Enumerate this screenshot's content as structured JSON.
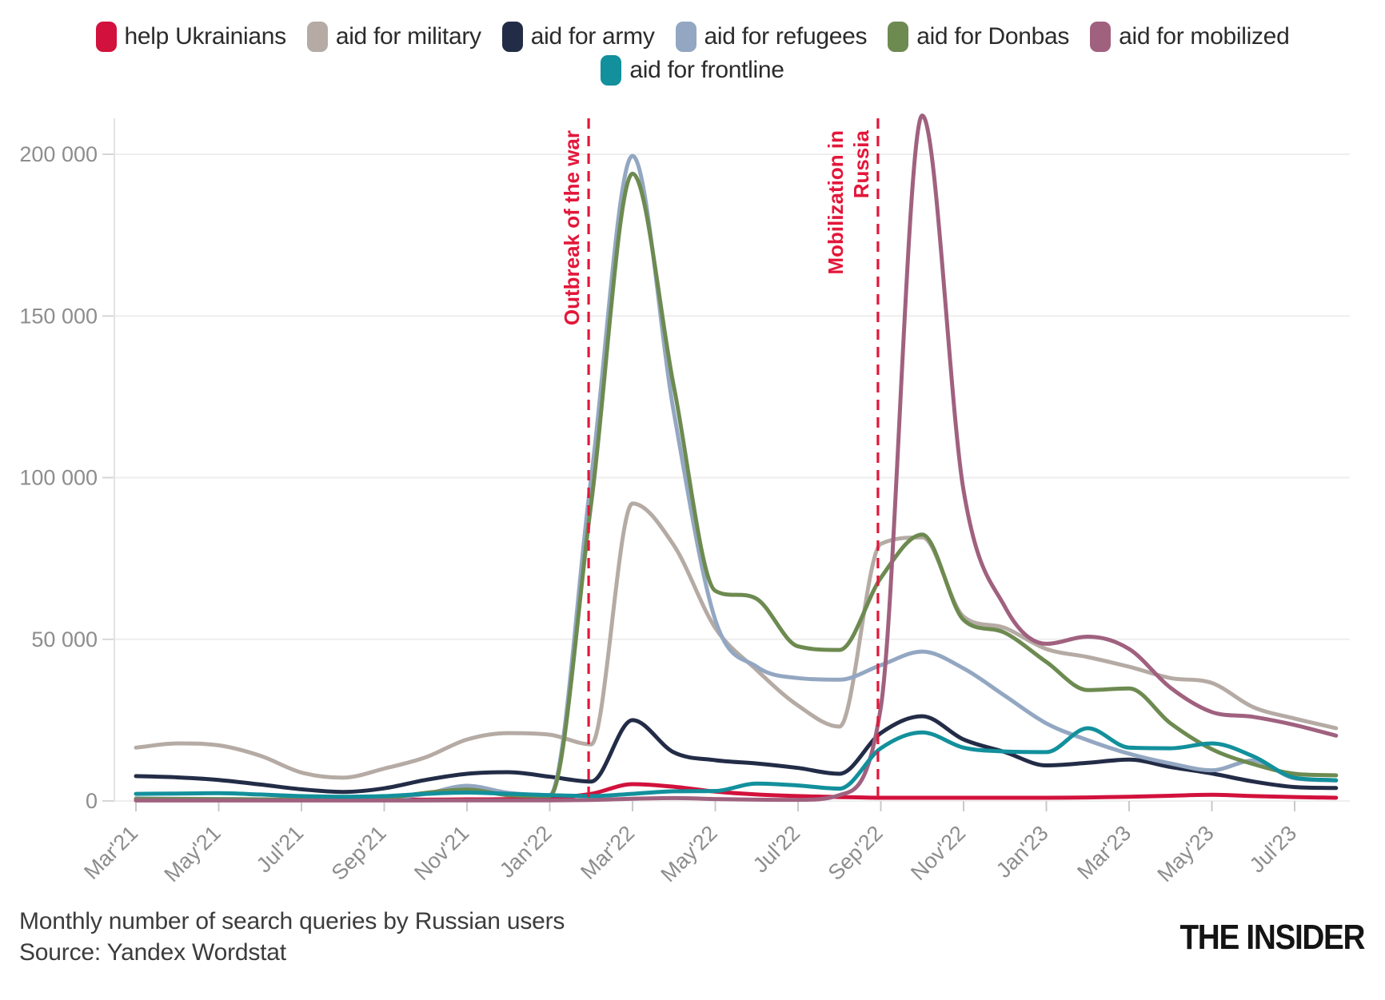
{
  "chart_data": {
    "type": "line",
    "title": "Monthly number of search queries by Russian users",
    "source": "Source: Yandex Wordstat",
    "categories": [
      "Mar'21",
      "Apr'21",
      "May'21",
      "Jun'21",
      "Jul'21",
      "Aug'21",
      "Sep'21",
      "Oct'21",
      "Nov'21",
      "Dec'21",
      "Jan'22",
      "Feb'22",
      "Mar'22",
      "Apr'22",
      "May'22",
      "Jun'22",
      "Jul'22",
      "Aug'22",
      "Sep'22",
      "Oct'22",
      "Nov'22",
      "Dec'22",
      "Jan'23",
      "Feb'23",
      "Mar'23",
      "Apr'23",
      "May'23",
      "Jun'23",
      "Jul'23",
      "Aug'23"
    ],
    "x_tick_every": 2,
    "ylim": [
      0,
      212000
    ],
    "grid": "horizontal",
    "y_ticks": {
      "values": [
        0,
        50000,
        100000,
        150000,
        200000
      ],
      "labels": [
        "0",
        "50 000",
        "100 000",
        "150 000",
        "200 000"
      ]
    },
    "series": [
      {
        "name": "help Ukrainians",
        "color": "#d2113c",
        "values": [
          300,
          300,
          400,
          350,
          300,
          300,
          350,
          400,
          500,
          550,
          900,
          2200,
          5200,
          4400,
          2900,
          2000,
          1500,
          1200,
          1000,
          1000,
          1000,
          1000,
          1000,
          1100,
          1300,
          1600,
          1900,
          1500,
          1200,
          1000
        ]
      },
      {
        "name": "aid for military",
        "color": "#b5aba4",
        "values": [
          16500,
          17800,
          17200,
          14000,
          8800,
          7200,
          10000,
          13500,
          19000,
          21000,
          20500,
          17500,
          92000,
          79000,
          53500,
          40500,
          29500,
          23000,
          79500,
          81500,
          57000,
          53500,
          47000,
          44500,
          41500,
          38000,
          36500,
          29000,
          25500,
          22500
        ]
      },
      {
        "name": "aid for army",
        "color": "#232c47",
        "values": [
          7700,
          7300,
          6500,
          5100,
          3600,
          2800,
          3900,
          6500,
          8400,
          8900,
          7500,
          6000,
          25000,
          15000,
          12600,
          11600,
          10200,
          8400,
          21000,
          26200,
          19000,
          15100,
          11000,
          11800,
          12800,
          10500,
          8500,
          6000,
          4300,
          4000
        ]
      },
      {
        "name": "aid for refugees",
        "color": "#93a7c2",
        "values": [
          800,
          700,
          600,
          500,
          450,
          450,
          700,
          2200,
          4700,
          2500,
          1800,
          100000,
          199500,
          120000,
          56000,
          41500,
          38000,
          37500,
          42000,
          46200,
          41000,
          32500,
          24000,
          18800,
          14600,
          11600,
          9500,
          12500,
          7000,
          6300
        ]
      },
      {
        "name": "aid for Donbas",
        "color": "#6d8a50",
        "values": [
          600,
          600,
          550,
          500,
          450,
          450,
          800,
          2500,
          3500,
          1800,
          1500,
          92000,
          194000,
          128000,
          65000,
          62500,
          47800,
          46700,
          69000,
          82400,
          56000,
          52000,
          43000,
          34300,
          34800,
          24000,
          16000,
          11400,
          8400,
          7900
        ]
      },
      {
        "name": "aid for mobilized",
        "color": "#a0617f",
        "values": [
          150,
          150,
          150,
          150,
          150,
          150,
          150,
          150,
          200,
          200,
          200,
          300,
          700,
          900,
          600,
          400,
          350,
          1800,
          29000,
          212000,
          96000,
          60000,
          48600,
          50800,
          47000,
          35000,
          27500,
          26000,
          23500,
          20200
        ]
      },
      {
        "name": "aid for frontline",
        "color": "#12909c",
        "values": [
          2200,
          2300,
          2400,
          2000,
          1500,
          1300,
          1500,
          2200,
          2600,
          2200,
          1800,
          1500,
          2200,
          3000,
          3100,
          5400,
          4800,
          3800,
          16300,
          21200,
          16500,
          15300,
          15100,
          22500,
          16500,
          16300,
          17800,
          13800,
          7200,
          6400
        ]
      }
    ],
    "annotations": [
      {
        "lines": [
          "Outbreak of the war"
        ],
        "month_frac": 10.94
      },
      {
        "lines": [
          "Mobilization in",
          "Russia"
        ],
        "month_frac": 17.93
      }
    ],
    "annotation_color": "#e3173a"
  },
  "footer": {
    "brand": "THE INSIDER"
  }
}
